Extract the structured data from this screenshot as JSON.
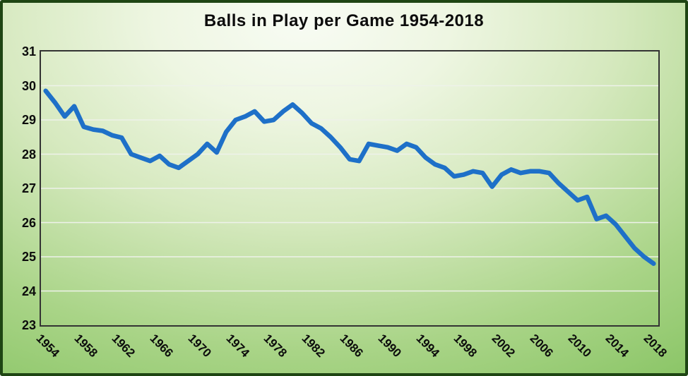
{
  "colors": {
    "line": "#1e70c8",
    "gridline": "#eef2ea",
    "axis_border": "#333333",
    "frame_border": "#1e4513",
    "background_green": "#77b755",
    "background_light": "#f8fcf4",
    "text": "#0c0c0c"
  },
  "chart_data": {
    "type": "line",
    "title": "Balls in Play per Game 1954-2018",
    "xlabel": "",
    "ylabel": "",
    "ylim": [
      23,
      31
    ],
    "grid": "horizontal",
    "legend": "none",
    "y_ticks": [
      31,
      30,
      29,
      28,
      27,
      26,
      25,
      24,
      23
    ],
    "x_tick_labels": [
      "1954",
      "1958",
      "1962",
      "1966",
      "1970",
      "1974",
      "1978",
      "1982",
      "1986",
      "1990",
      "1994",
      "1998",
      "2002",
      "2006",
      "2010",
      "2014",
      "2018"
    ],
    "x": [
      1954,
      1955,
      1956,
      1957,
      1958,
      1959,
      1960,
      1961,
      1962,
      1963,
      1964,
      1965,
      1966,
      1967,
      1968,
      1969,
      1970,
      1971,
      1972,
      1973,
      1974,
      1975,
      1976,
      1977,
      1978,
      1979,
      1980,
      1981,
      1982,
      1983,
      1984,
      1985,
      1986,
      1987,
      1988,
      1989,
      1990,
      1991,
      1992,
      1993,
      1994,
      1995,
      1996,
      1997,
      1998,
      1999,
      2000,
      2001,
      2002,
      2003,
      2004,
      2005,
      2006,
      2007,
      2008,
      2009,
      2010,
      2011,
      2012,
      2013,
      2014,
      2015,
      2016,
      2017,
      2018
    ],
    "values": [
      29.85,
      29.5,
      29.1,
      29.4,
      28.8,
      28.72,
      28.68,
      28.55,
      28.48,
      28.0,
      27.9,
      27.8,
      27.95,
      27.7,
      27.6,
      27.8,
      28.0,
      28.3,
      28.05,
      28.65,
      29.0,
      29.1,
      29.25,
      28.95,
      29.0,
      29.25,
      29.45,
      29.2,
      28.9,
      28.75,
      28.5,
      28.2,
      27.85,
      27.8,
      28.3,
      28.25,
      28.2,
      28.1,
      28.3,
      28.2,
      27.9,
      27.7,
      27.6,
      27.35,
      27.4,
      27.5,
      27.45,
      27.05,
      27.4,
      27.55,
      27.45,
      27.5,
      27.5,
      27.45,
      27.15,
      26.9,
      26.65,
      26.75,
      26.1,
      26.2,
      25.95,
      25.6,
      25.25,
      25.0,
      24.8
    ]
  }
}
